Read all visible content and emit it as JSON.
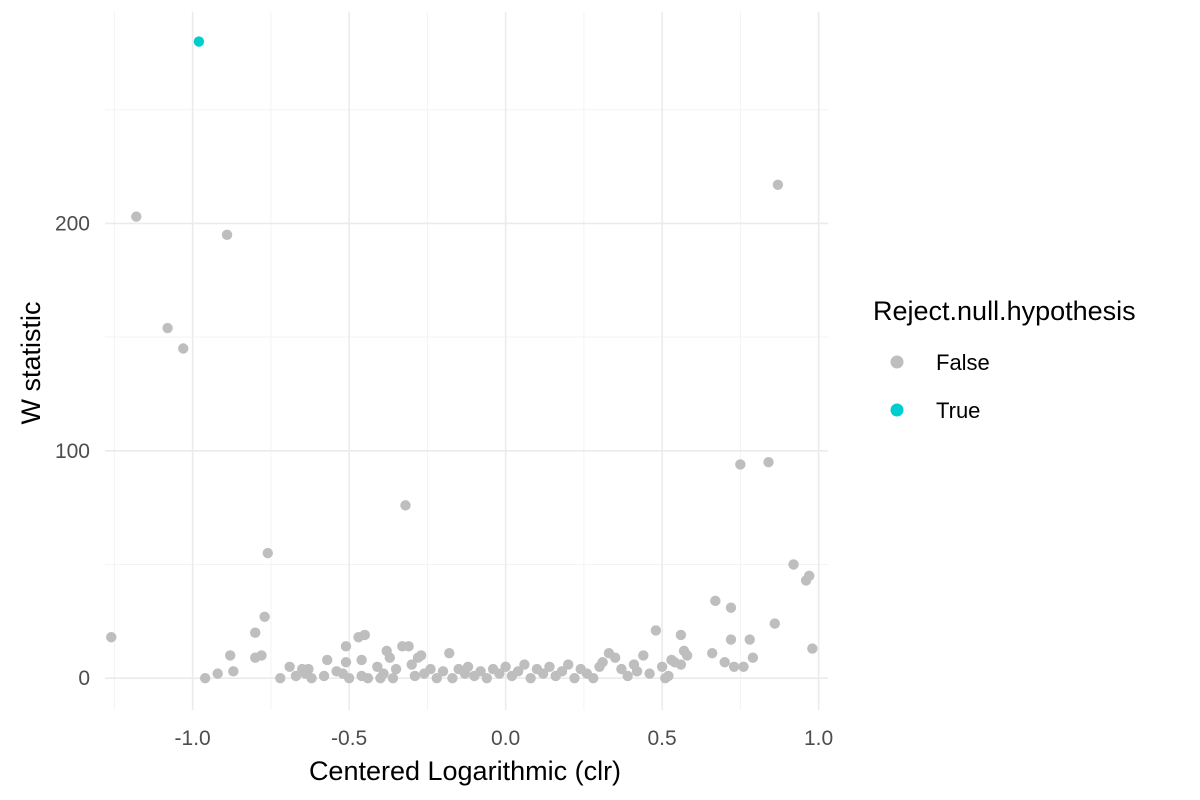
{
  "chart_data": {
    "type": "scatter",
    "title": "",
    "xlabel": "Centered Logarithmic (clr)",
    "ylabel": "W statistic",
    "xlim": [
      -1.28,
      1.03
    ],
    "ylim": [
      -14,
      293
    ],
    "x_ticks": [
      -1.0,
      -0.5,
      0.0,
      0.5,
      1.0
    ],
    "x_tick_labels": [
      "-1.0",
      "-0.5",
      "0.0",
      "0.5",
      "1.0"
    ],
    "y_ticks": [
      0,
      100,
      200
    ],
    "y_tick_labels": [
      "0",
      "100",
      "200"
    ],
    "grid": true,
    "legend": {
      "title": "Reject.null.hypothesis",
      "position": "right",
      "entries": [
        {
          "label": "False",
          "color": "#bebebe"
        },
        {
          "label": "True",
          "color": "#00cdcd"
        }
      ]
    },
    "series": [
      {
        "name": "False",
        "color": "#bebebe",
        "points": [
          [
            -1.26,
            18
          ],
          [
            -1.18,
            203
          ],
          [
            -1.08,
            154
          ],
          [
            -1.03,
            145
          ],
          [
            -0.89,
            195
          ],
          [
            -0.96,
            0
          ],
          [
            -0.92,
            2
          ],
          [
            -0.88,
            10
          ],
          [
            -0.87,
            3
          ],
          [
            -0.8,
            20
          ],
          [
            -0.8,
            9
          ],
          [
            -0.78,
            10
          ],
          [
            -0.77,
            27
          ],
          [
            -0.76,
            55
          ],
          [
            -0.72,
            0
          ],
          [
            -0.69,
            5
          ],
          [
            -0.67,
            1
          ],
          [
            -0.65,
            4
          ],
          [
            -0.64,
            2
          ],
          [
            -0.63,
            4
          ],
          [
            -0.62,
            0
          ],
          [
            -0.58,
            1
          ],
          [
            -0.57,
            8
          ],
          [
            -0.54,
            3
          ],
          [
            -0.52,
            2
          ],
          [
            -0.51,
            14
          ],
          [
            -0.51,
            7
          ],
          [
            -0.5,
            0
          ],
          [
            -0.47,
            18
          ],
          [
            -0.46,
            8
          ],
          [
            -0.46,
            1
          ],
          [
            -0.45,
            19
          ],
          [
            -0.44,
            0
          ],
          [
            -0.41,
            5
          ],
          [
            -0.4,
            0
          ],
          [
            -0.39,
            2
          ],
          [
            -0.38,
            12
          ],
          [
            -0.37,
            9
          ],
          [
            -0.36,
            0
          ],
          [
            -0.35,
            4
          ],
          [
            -0.33,
            14
          ],
          [
            -0.32,
            76
          ],
          [
            -0.31,
            14
          ],
          [
            -0.3,
            6
          ],
          [
            -0.29,
            1
          ],
          [
            -0.28,
            9
          ],
          [
            -0.27,
            10
          ],
          [
            -0.26,
            2
          ],
          [
            -0.24,
            4
          ],
          [
            -0.22,
            0
          ],
          [
            -0.2,
            3
          ],
          [
            -0.18,
            11
          ],
          [
            -0.17,
            0
          ],
          [
            -0.15,
            4
          ],
          [
            -0.13,
            2
          ],
          [
            -0.12,
            5
          ],
          [
            -0.1,
            1
          ],
          [
            -0.08,
            3
          ],
          [
            -0.06,
            0
          ],
          [
            -0.04,
            4
          ],
          [
            -0.02,
            2
          ],
          [
            0.0,
            5
          ],
          [
            0.02,
            1
          ],
          [
            0.04,
            3
          ],
          [
            0.06,
            6
          ],
          [
            0.08,
            0
          ],
          [
            0.1,
            4
          ],
          [
            0.12,
            2
          ],
          [
            0.14,
            5
          ],
          [
            0.16,
            1
          ],
          [
            0.18,
            3
          ],
          [
            0.2,
            6
          ],
          [
            0.22,
            0
          ],
          [
            0.24,
            4
          ],
          [
            0.26,
            2
          ],
          [
            0.28,
            0
          ],
          [
            0.3,
            5
          ],
          [
            0.31,
            7
          ],
          [
            0.33,
            11
          ],
          [
            0.35,
            9
          ],
          [
            0.37,
            4
          ],
          [
            0.39,
            1
          ],
          [
            0.41,
            6
          ],
          [
            0.42,
            3
          ],
          [
            0.44,
            10
          ],
          [
            0.46,
            2
          ],
          [
            0.48,
            21
          ],
          [
            0.5,
            5
          ],
          [
            0.51,
            0
          ],
          [
            0.52,
            1
          ],
          [
            0.53,
            8
          ],
          [
            0.54,
            7
          ],
          [
            0.56,
            6
          ],
          [
            0.56,
            19
          ],
          [
            0.57,
            12
          ],
          [
            0.58,
            10
          ],
          [
            0.66,
            11
          ],
          [
            0.67,
            34
          ],
          [
            0.7,
            7
          ],
          [
            0.72,
            31
          ],
          [
            0.72,
            17
          ],
          [
            0.73,
            5
          ],
          [
            0.75,
            94
          ],
          [
            0.76,
            5
          ],
          [
            0.78,
            17
          ],
          [
            0.79,
            9
          ],
          [
            0.84,
            95
          ],
          [
            0.86,
            24
          ],
          [
            0.87,
            217
          ],
          [
            0.92,
            50
          ],
          [
            0.96,
            43
          ],
          [
            0.97,
            45
          ],
          [
            0.98,
            13
          ]
        ]
      },
      {
        "name": "True",
        "color": "#00cdcd",
        "points": [
          [
            -0.98,
            280
          ]
        ]
      }
    ]
  }
}
